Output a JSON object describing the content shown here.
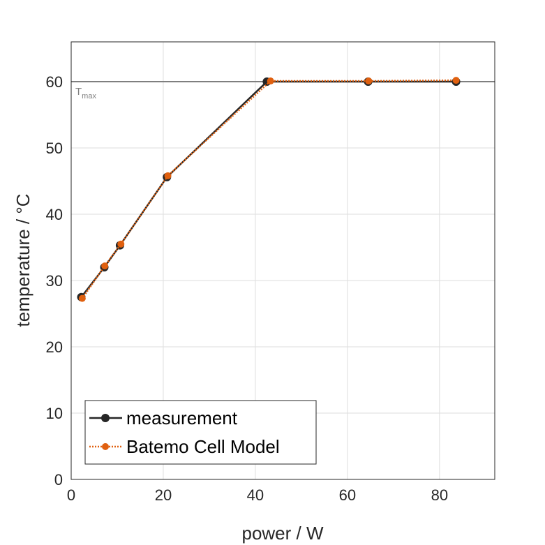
{
  "chart_data": {
    "type": "line",
    "xlabel": "power / W",
    "ylabel": "temperature / °C",
    "xlim": [
      0,
      92
    ],
    "ylim": [
      0,
      66
    ],
    "xticks": [
      0,
      20,
      40,
      60,
      80
    ],
    "yticks": [
      0,
      10,
      20,
      30,
      40,
      50,
      60
    ],
    "grid": true,
    "legend_position": "bottom-left",
    "reference_line": {
      "y": 60,
      "label_main": "T",
      "label_sub": "max",
      "color": "#7f7f7f"
    },
    "series": [
      {
        "name": "measurement",
        "color": "#262626",
        "line_style": "solid",
        "x": [
          2.2,
          7.2,
          10.6,
          20.8,
          42.5,
          64.5,
          83.6
        ],
        "y": [
          27.5,
          32.0,
          35.3,
          45.6,
          60.0,
          60.0,
          60.0
        ]
      },
      {
        "name": "Batemo Cell Model",
        "color": "#e0600f",
        "line_style": "dotted",
        "x": [
          2.4,
          7.3,
          10.8,
          21.0,
          43.3,
          64.6,
          83.6
        ],
        "y": [
          27.3,
          32.2,
          35.5,
          45.8,
          60.1,
          60.1,
          60.2
        ]
      }
    ]
  }
}
